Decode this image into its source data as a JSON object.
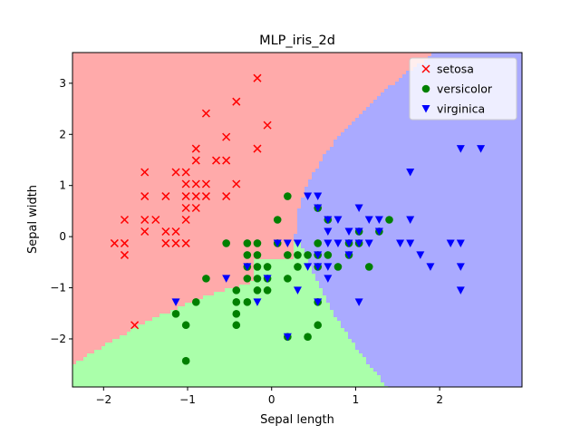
{
  "chart_data": {
    "type": "scatter",
    "title": "MLP_iris_2d",
    "xlabel": "Sepal length",
    "ylabel": "Sepal width",
    "xlim": [
      -2.37,
      2.98
    ],
    "ylim": [
      -2.94,
      3.6
    ],
    "x_ticks": [
      -2,
      -1,
      0,
      1,
      2
    ],
    "y_ticks": [
      -2,
      -1,
      0,
      1,
      2,
      3
    ],
    "grid": false,
    "legend_position": "top-right",
    "regions": {
      "setosa": "#ffaaaa",
      "versicolor": "#aaffaa",
      "virginica": "#aaaaff"
    },
    "series": [
      {
        "name": "setosa",
        "marker": "x",
        "color": "#ff0000",
        "points": [
          [
            -1.87,
            -0.13
          ],
          [
            -1.75,
            -0.13
          ],
          [
            -1.75,
            -0.36
          ],
          [
            -1.63,
            -1.73
          ],
          [
            -1.75,
            0.33
          ],
          [
            -1.51,
            1.26
          ],
          [
            -1.51,
            0.79
          ],
          [
            -1.51,
            0.33
          ],
          [
            -1.51,
            0.1
          ],
          [
            -1.38,
            0.33
          ],
          [
            -1.26,
            0.79
          ],
          [
            -1.26,
            0.1
          ],
          [
            -1.26,
            -0.13
          ],
          [
            -1.14,
            1.26
          ],
          [
            -1.14,
            0.1
          ],
          [
            -1.14,
            -0.13
          ],
          [
            -1.02,
            1.26
          ],
          [
            -1.02,
            1.03
          ],
          [
            -1.02,
            0.79
          ],
          [
            -1.02,
            0.56
          ],
          [
            -1.02,
            0.33
          ],
          [
            -1.02,
            -0.13
          ],
          [
            -0.9,
            1.72
          ],
          [
            -0.9,
            1.49
          ],
          [
            -0.9,
            1.03
          ],
          [
            -0.9,
            0.79
          ],
          [
            -0.9,
            0.56
          ],
          [
            -0.78,
            2.41
          ],
          [
            -0.78,
            1.03
          ],
          [
            -0.78,
            0.79
          ],
          [
            -0.66,
            1.49
          ],
          [
            -0.54,
            1.95
          ],
          [
            -0.54,
            1.49
          ],
          [
            -0.54,
            0.79
          ],
          [
            -0.42,
            2.64
          ],
          [
            -0.42,
            1.03
          ],
          [
            -0.17,
            3.1
          ],
          [
            -0.17,
            1.72
          ],
          [
            -0.05,
            2.18
          ]
        ]
      },
      {
        "name": "versicolor",
        "marker": "circle",
        "color": "#008000",
        "points": [
          [
            -1.02,
            -2.43
          ],
          [
            -1.02,
            -1.73
          ],
          [
            -1.14,
            -1.51
          ],
          [
            -0.9,
            -1.28
          ],
          [
            -0.78,
            -0.82
          ],
          [
            -0.54,
            -0.13
          ],
          [
            -0.42,
            -1.05
          ],
          [
            -0.42,
            -1.28
          ],
          [
            -0.42,
            -1.51
          ],
          [
            -0.42,
            -1.73
          ],
          [
            -0.29,
            -0.13
          ],
          [
            -0.29,
            -0.36
          ],
          [
            -0.29,
            -0.59
          ],
          [
            -0.29,
            -0.82
          ],
          [
            -0.29,
            -1.28
          ],
          [
            -0.17,
            -0.13
          ],
          [
            -0.17,
            -0.36
          ],
          [
            -0.17,
            -0.59
          ],
          [
            -0.17,
            -0.82
          ],
          [
            -0.17,
            -1.05
          ],
          [
            -0.05,
            -0.59
          ],
          [
            -0.05,
            -0.82
          ],
          [
            -0.05,
            -1.05
          ],
          [
            0.07,
            0.33
          ],
          [
            0.07,
            -0.13
          ],
          [
            0.19,
            0.79
          ],
          [
            0.19,
            -0.36
          ],
          [
            0.19,
            -0.82
          ],
          [
            0.19,
            -1.96
          ],
          [
            0.31,
            -0.36
          ],
          [
            0.31,
            -0.59
          ],
          [
            0.43,
            -0.36
          ],
          [
            0.43,
            -1.96
          ],
          [
            0.55,
            0.56
          ],
          [
            0.55,
            -0.13
          ],
          [
            0.55,
            -0.36
          ],
          [
            0.55,
            -0.59
          ],
          [
            0.55,
            -1.28
          ],
          [
            0.55,
            -1.73
          ],
          [
            0.67,
            0.33
          ],
          [
            0.67,
            -0.36
          ],
          [
            0.79,
            -0.59
          ],
          [
            0.92,
            -0.13
          ],
          [
            0.92,
            -0.36
          ],
          [
            1.04,
            0.1
          ],
          [
            1.04,
            -0.13
          ],
          [
            1.16,
            -0.59
          ],
          [
            1.28,
            0.1
          ],
          [
            1.4,
            0.33
          ]
        ]
      },
      {
        "name": "virginica",
        "marker": "triangle-down",
        "color": "#0000ff",
        "points": [
          [
            -1.14,
            -1.28
          ],
          [
            -0.54,
            -0.82
          ],
          [
            -0.29,
            -0.59
          ],
          [
            -0.17,
            -1.28
          ],
          [
            -0.05,
            -0.82
          ],
          [
            0.07,
            -0.13
          ],
          [
            0.19,
            -0.13
          ],
          [
            0.19,
            -1.96
          ],
          [
            0.31,
            -0.13
          ],
          [
            0.31,
            -1.05
          ],
          [
            0.43,
            0.79
          ],
          [
            0.43,
            -0.59
          ],
          [
            0.55,
            0.79
          ],
          [
            0.55,
            0.56
          ],
          [
            0.55,
            -0.36
          ],
          [
            0.55,
            -0.59
          ],
          [
            0.55,
            -1.28
          ],
          [
            0.67,
            0.33
          ],
          [
            0.67,
            0.1
          ],
          [
            0.67,
            -0.13
          ],
          [
            0.67,
            -0.59
          ],
          [
            0.67,
            -0.82
          ],
          [
            0.79,
            0.33
          ],
          [
            0.79,
            -0.13
          ],
          [
            0.92,
            0.1
          ],
          [
            0.92,
            -0.13
          ],
          [
            0.92,
            -0.36
          ],
          [
            1.04,
            0.56
          ],
          [
            1.04,
            0.1
          ],
          [
            1.04,
            -0.13
          ],
          [
            1.04,
            -1.28
          ],
          [
            1.16,
            0.33
          ],
          [
            1.16,
            -0.13
          ],
          [
            1.28,
            0.33
          ],
          [
            1.28,
            0.1
          ],
          [
            1.53,
            -0.13
          ],
          [
            1.65,
            1.26
          ],
          [
            1.65,
            0.33
          ],
          [
            1.65,
            -0.13
          ],
          [
            1.77,
            -0.36
          ],
          [
            1.89,
            -0.59
          ],
          [
            2.13,
            -0.13
          ],
          [
            2.25,
            1.72
          ],
          [
            2.25,
            -0.13
          ],
          [
            2.25,
            -0.59
          ],
          [
            2.25,
            -1.05
          ],
          [
            2.49,
            1.72
          ]
        ]
      }
    ]
  }
}
